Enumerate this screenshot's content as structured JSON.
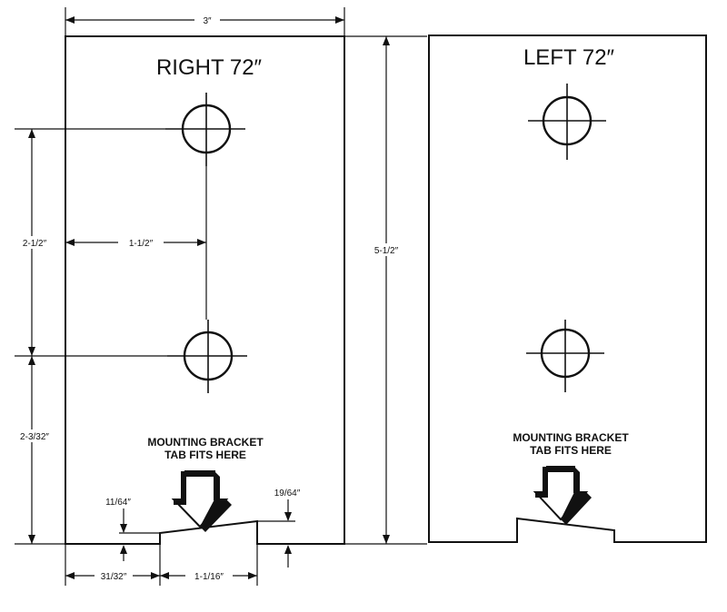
{
  "right_template": {
    "title": "RIGHT  72″",
    "note_line1": "MOUNTING BRACKET",
    "note_line2": "TAB FITS HERE",
    "dims": {
      "width": "3″",
      "hole_spacing": "2-1/2″",
      "hole_offset": "1-1/2″",
      "lower_height": "2-3/32″",
      "left_notch": "11/64″",
      "right_notch": "19/64″",
      "left_width": "31/32″",
      "tab_width": "1-1/16″"
    }
  },
  "left_template": {
    "title": "LEFT  72″",
    "note_line1": "MOUNTING BRACKET",
    "note_line2": "TAB FITS HERE"
  },
  "shared": {
    "height": "5-1/2″"
  }
}
